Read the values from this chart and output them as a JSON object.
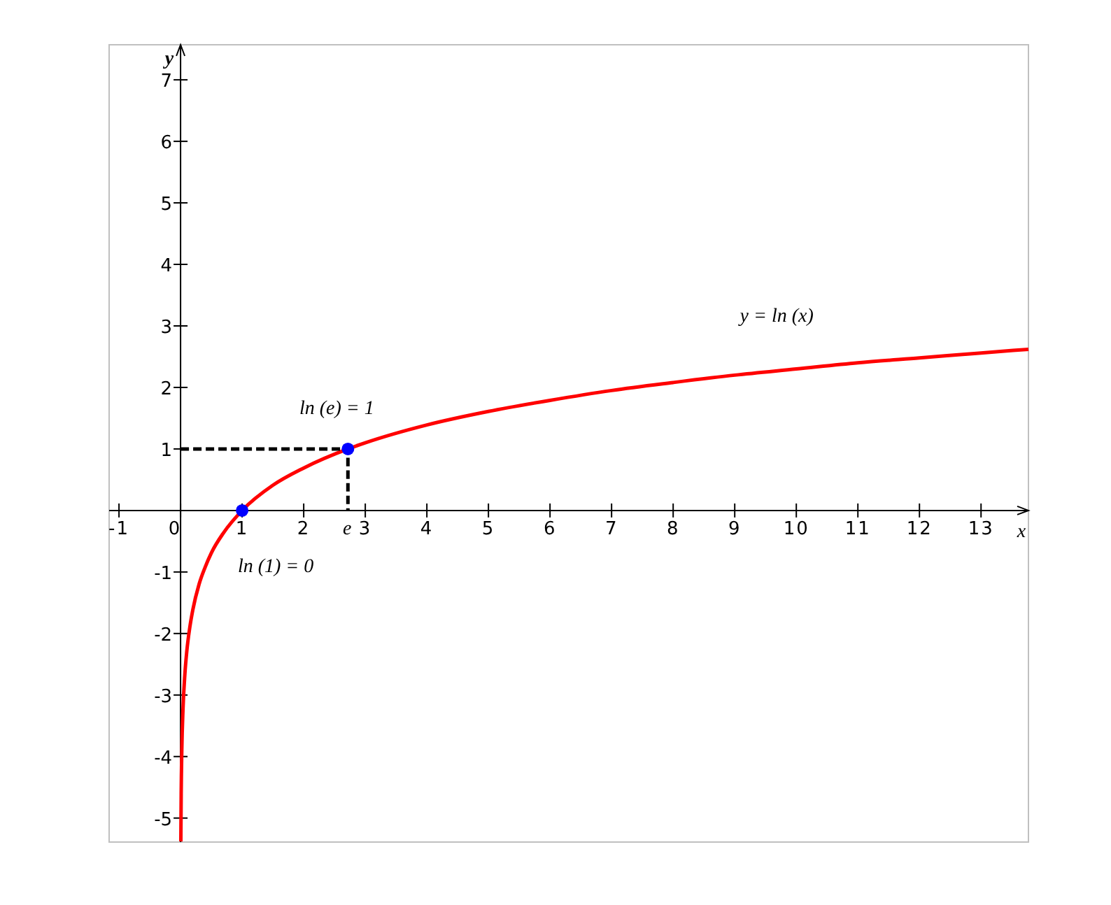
{
  "chart_data": {
    "type": "line",
    "xlabel": "x",
    "ylabel": "y",
    "xlim": [
      -1.16,
      13.77
    ],
    "ylim": [
      -5.39,
      7.57
    ],
    "xticks": [
      -1,
      0,
      1,
      2,
      {
        "value": 2.718,
        "label": "e"
      },
      3,
      4,
      5,
      6,
      7,
      8,
      9,
      10,
      11,
      12,
      13
    ],
    "yticks": [
      -5,
      -4,
      -3,
      -2,
      -1,
      1,
      2,
      3,
      4,
      5,
      6,
      7
    ],
    "grid": false,
    "series": [
      {
        "name": "y = ln (x)",
        "color": "#ff0000",
        "x": [
          0.0046,
          0.01,
          0.02,
          0.04,
          0.07,
          0.1,
          0.15,
          0.2,
          0.3,
          0.4,
          0.5,
          0.7,
          1,
          1.5,
          2,
          2.718,
          3,
          4,
          5,
          6,
          7,
          8,
          9,
          10,
          11,
          12,
          13,
          13.77
        ],
        "values": [
          -5.38,
          -4.61,
          -3.91,
          -3.22,
          -2.66,
          -2.3,
          -1.9,
          -1.61,
          -1.2,
          -0.92,
          -0.69,
          -0.36,
          0,
          0.41,
          0.69,
          1,
          1.1,
          1.39,
          1.61,
          1.79,
          1.95,
          2.08,
          2.2,
          2.3,
          2.4,
          2.48,
          2.56,
          2.62
        ]
      },
      {
        "color": "#000000",
        "line_style": "dashed",
        "x": [
          0,
          2.718,
          2.718
        ],
        "values": [
          1,
          1,
          0
        ]
      },
      {
        "type": "scatter",
        "color": "#0000ff",
        "marker": "circle",
        "x": [
          1,
          2.718
        ],
        "values": [
          0,
          1
        ]
      }
    ],
    "annotations": [
      {
        "text": "ln (e) = 1",
        "x": 2.718,
        "y": 1
      },
      {
        "text": "ln (1) = 0",
        "x": 1,
        "y": 0
      }
    ]
  }
}
